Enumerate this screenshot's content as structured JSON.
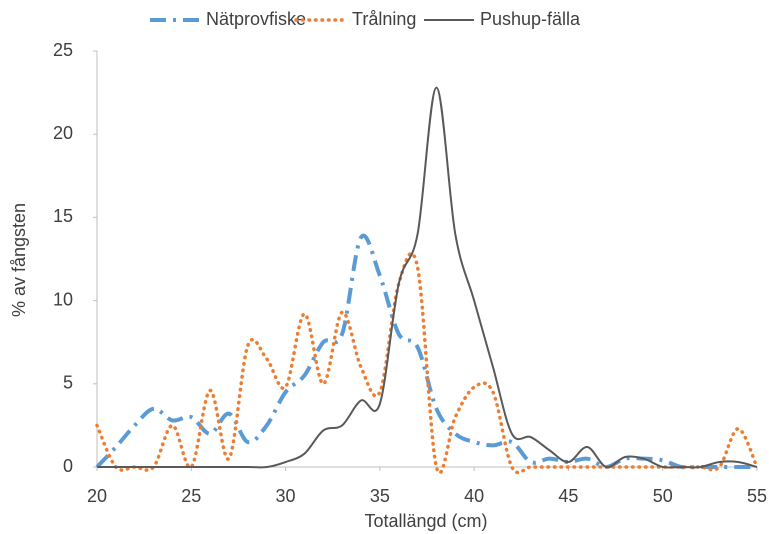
{
  "chart_data": {
    "type": "line",
    "xlabel": "Totallängd (cm)",
    "ylabel": "% av fångsten",
    "x": [
      20,
      21,
      22,
      23,
      24,
      25,
      26,
      27,
      28,
      29,
      30,
      31,
      32,
      33,
      34,
      35,
      36,
      37,
      38,
      39,
      40,
      41,
      42,
      43,
      44,
      45,
      46,
      47,
      48,
      49,
      50,
      51,
      52,
      53,
      54,
      55
    ],
    "series": [
      {
        "name": "Nätprovfiske",
        "color": "#5b9bd5",
        "style": "dashdot",
        "values": [
          0,
          1.2,
          2.5,
          3.5,
          2.8,
          3,
          2,
          3.2,
          1.5,
          2.5,
          4.5,
          5.5,
          7.5,
          8,
          13.8,
          11.5,
          8,
          7.2,
          3.5,
          2,
          1.5,
          1.3,
          1.5,
          0.3,
          0.5,
          0.3,
          0.5,
          0,
          0.5,
          0.5,
          0.4,
          0,
          0,
          0,
          0,
          0
        ]
      },
      {
        "name": "Trålning",
        "color": "#ed7d31",
        "style": "dotted",
        "values": [
          2.5,
          0,
          0,
          0,
          2.5,
          0,
          4.6,
          0.5,
          7.3,
          6.5,
          4.8,
          9.2,
          5,
          9.3,
          6,
          4.5,
          11,
          12,
          0,
          3,
          4.8,
          4.5,
          0,
          0,
          0,
          0,
          0,
          0,
          0,
          0,
          0,
          0,
          0,
          0,
          2.3,
          0
        ]
      },
      {
        "name": "Pushup-fälla",
        "color": "#595959",
        "style": "solid",
        "values": [
          0,
          0,
          0,
          0,
          0,
          0,
          0,
          0,
          0,
          0,
          0.3,
          0.8,
          2.2,
          2.5,
          4,
          3.8,
          11,
          14,
          22.8,
          14,
          10,
          6,
          2,
          1.8,
          1,
          0.3,
          1.2,
          0,
          0.6,
          0.5,
          0,
          0,
          0,
          0.3,
          0.3,
          0
        ]
      }
    ],
    "xlim": [
      20,
      55
    ],
    "xticks": [
      20,
      25,
      30,
      35,
      40,
      45,
      50,
      55
    ],
    "ylim": [
      0,
      25
    ],
    "yticks": [
      0,
      5,
      10,
      15,
      20,
      25
    ],
    "legend": "top"
  }
}
